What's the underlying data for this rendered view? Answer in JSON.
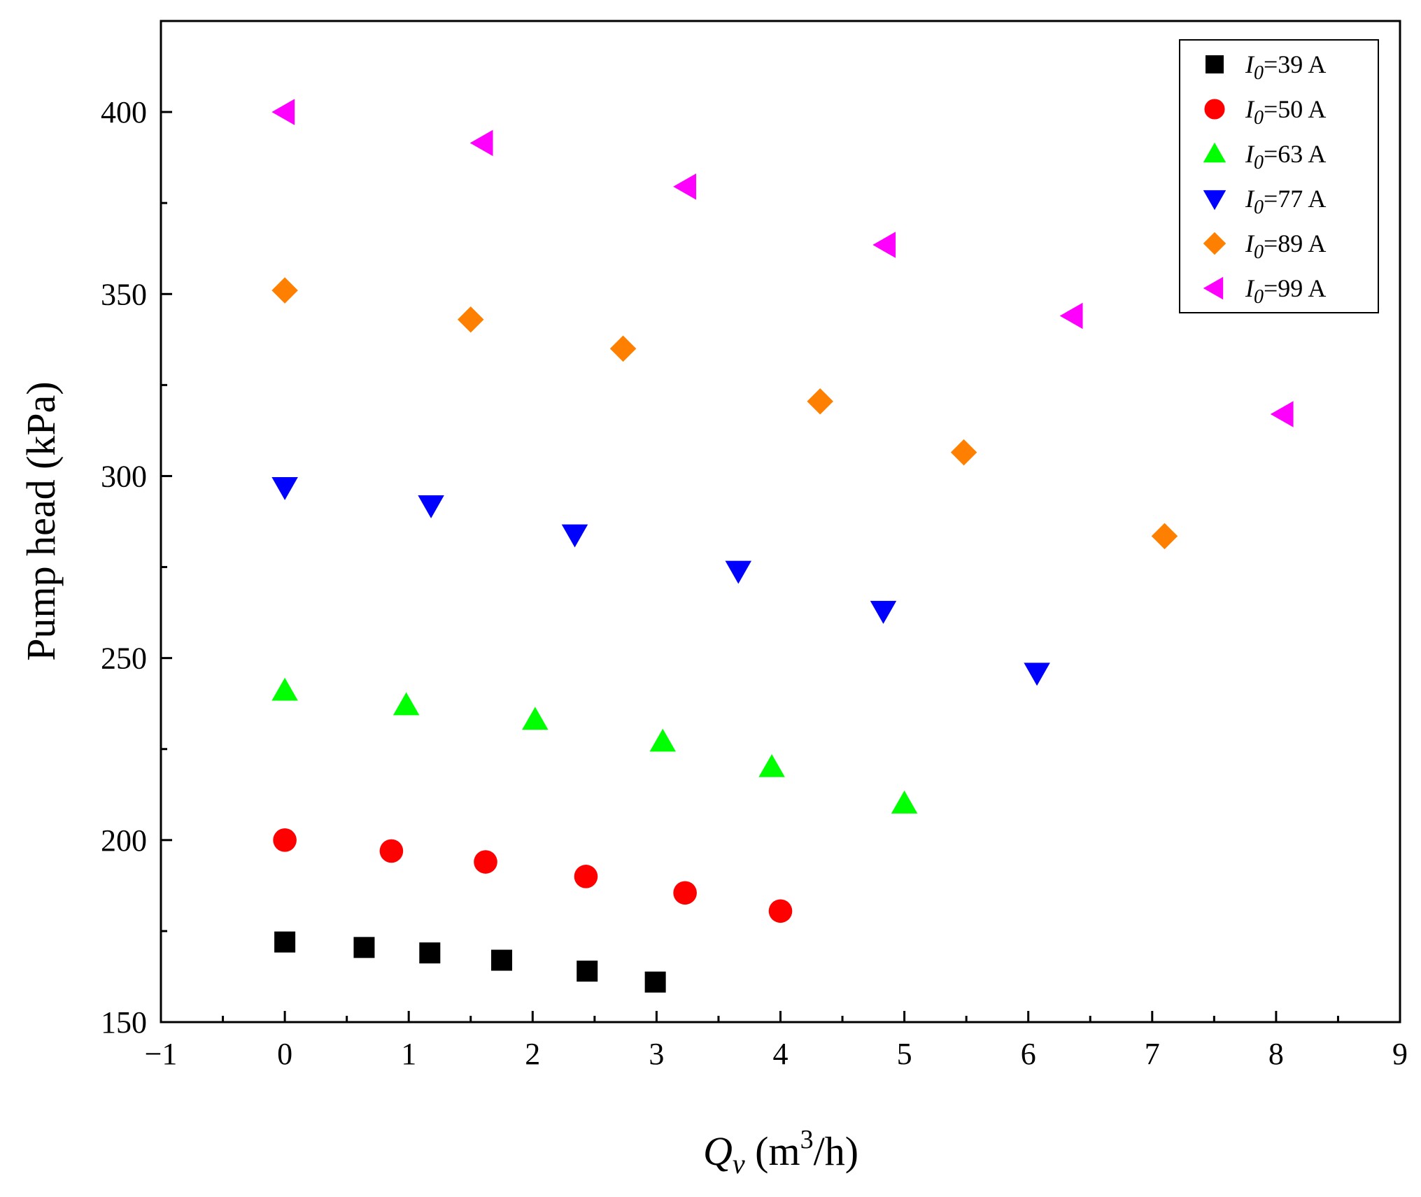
{
  "chart_data": {
    "type": "scatter",
    "title": "",
    "xlabel": {
      "italic": "Q",
      "sub": "v",
      "rest_a": " (m",
      "sup": "3",
      "rest_b": "/h)"
    },
    "ylabel": "Pump head (kPa)",
    "xlim": [
      -1,
      9
    ],
    "ylim": [
      150,
      425
    ],
    "xticks": [
      -1,
      0,
      1,
      2,
      3,
      4,
      5,
      6,
      7,
      8,
      9
    ],
    "xtick_labels": [
      "−1",
      "0",
      "1",
      "2",
      "3",
      "4",
      "5",
      "6",
      "7",
      "8",
      "9"
    ],
    "yticks": [
      150,
      200,
      250,
      300,
      350,
      400
    ],
    "ytick_labels": [
      "150",
      "200",
      "250",
      "300",
      "350",
      "400"
    ],
    "grid": false,
    "legend_position": "top-right",
    "series": [
      {
        "name": "I0=39 A",
        "label_italic": "I",
        "label_sub": "0",
        "label_rest": "=39 A",
        "marker": "square",
        "color": "#000000",
        "x": [
          0,
          0.64,
          1.17,
          1.75,
          2.44,
          2.99
        ],
        "y": [
          172,
          170.5,
          169,
          167,
          164,
          161
        ]
      },
      {
        "name": "I0=50 A",
        "label_italic": "I",
        "label_sub": "0",
        "label_rest": "=50 A",
        "marker": "circle",
        "color": "#ff0000",
        "x": [
          0,
          0.86,
          1.62,
          2.43,
          3.23,
          4.0
        ],
        "y": [
          200,
          197,
          194,
          190,
          185.5,
          180.5
        ]
      },
      {
        "name": "I0=63 A",
        "label_italic": "I",
        "label_sub": "0",
        "label_rest": "=63 A",
        "marker": "triangle-up",
        "color": "#00ff00",
        "x": [
          0,
          0.98,
          2.02,
          3.05,
          3.93,
          5.0
        ],
        "y": [
          241,
          237,
          233,
          227,
          220,
          210
        ]
      },
      {
        "name": "I0=77 A",
        "label_italic": "I",
        "label_sub": "0",
        "label_rest": "=77 A",
        "marker": "triangle-down",
        "color": "#0000ff",
        "x": [
          0,
          1.18,
          2.34,
          3.66,
          4.83,
          6.07
        ],
        "y": [
          297,
          292,
          284,
          274,
          263,
          246
        ]
      },
      {
        "name": "I0=89 A",
        "label_italic": "I",
        "label_sub": "0",
        "label_rest": "=89 A",
        "marker": "diamond",
        "color": "#ff8000",
        "x": [
          0,
          1.5,
          2.73,
          4.32,
          5.48,
          7.1
        ],
        "y": [
          351,
          343,
          335,
          320.5,
          306.5,
          283.5
        ]
      },
      {
        "name": "I0=99 A",
        "label_italic": "I",
        "label_sub": "0",
        "label_rest": "=99 A",
        "marker": "triangle-left",
        "color": "#ff00ff",
        "x": [
          0,
          1.6,
          3.24,
          4.85,
          6.36,
          8.06
        ],
        "y": [
          400,
          391.5,
          379.5,
          363.5,
          344,
          317
        ]
      }
    ]
  }
}
